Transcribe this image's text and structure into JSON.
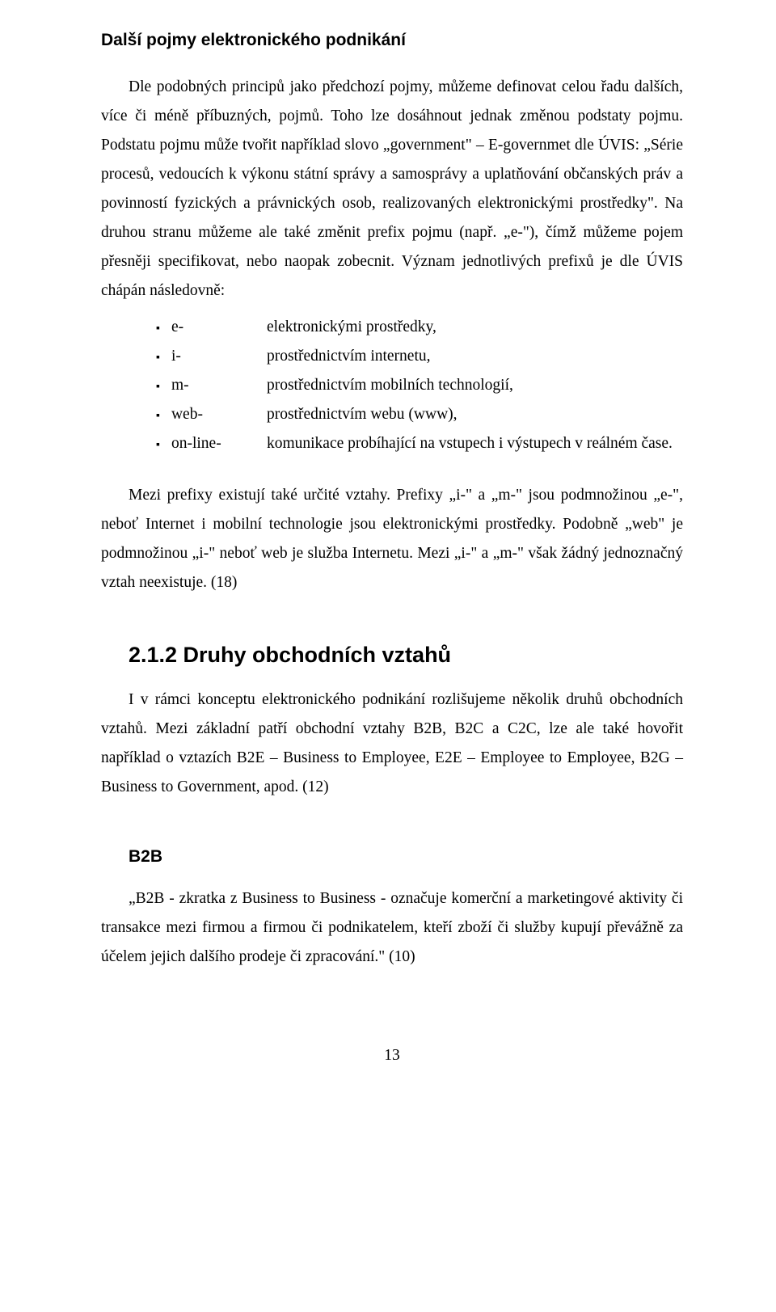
{
  "colors": {
    "page_background": "#ffffff",
    "text_color": "#000000"
  },
  "typography": {
    "body_font": "Times New Roman",
    "heading_font": "Arial",
    "body_size_pt": 12,
    "h3_size_pt": 13,
    "h2_size_pt": 16,
    "line_height": 1.85
  },
  "section1": {
    "heading": "Další pojmy elektronického podnikání",
    "para1": "Dle podobných principů jako předchozí pojmy, můžeme definovat celou řadu dalších, více či méně příbuzných, pojmů. Toho lze dosáhnout jednak změnou podstaty pojmu. Podstatu pojmu může tvořit například slovo „government\" – E-governmet dle ÚVIS: „Série procesů, vedoucích k výkonu státní správy a samosprávy a uplatňování občanských práv a povinností fyzických a právnických osob, realizovaných elektronickými prostředky\". Na druhou stranu můžeme ale také změnit prefix pojmu (např. „e-\"), čímž můžeme pojem přesněji specifikovat, nebo naopak zobecnit. Význam jednotlivých prefixů je dle ÚVIS chápán následovně:",
    "prefixes": [
      {
        "prefix": "e-",
        "definition": "elektronickými prostředky,"
      },
      {
        "prefix": "i-",
        "definition": "prostřednictvím internetu,"
      },
      {
        "prefix": "m-",
        "definition": "prostřednictvím mobilních technologií,"
      },
      {
        "prefix": "web-",
        "definition": "prostřednictvím webu (www),"
      },
      {
        "prefix": "on-line-",
        "definition": "komunikace probíhající na vstupech i výstupech v reálném čase."
      }
    ],
    "para2": "Mezi prefixy existují také určité vztahy. Prefixy „i-\" a „m-\" jsou podmnožinou „e-\", neboť Internet i mobilní technologie jsou elektronickými prostředky. Podobně „web\" je podmnožinou „i-\" neboť web je služba Internetu. Mezi „i-\" a „m-\" však žádný jednoznačný vztah neexistuje. (18)"
  },
  "section2": {
    "heading": "2.1.2 Druhy obchodních vztahů",
    "para1": "I v rámci konceptu elektronického podnikání rozlišujeme několik druhů obchodních vztahů. Mezi základní patří obchodní vztahy B2B, B2C a C2C, lze ale také hovořit například o vztazích B2E – Business to Employee, E2E – Employee to Employee, B2G – Business to Government, apod. (12)"
  },
  "section3": {
    "heading": "B2B",
    "para1": "„B2B - zkratka z Business to Business - označuje komerční a marketingové aktivity či transakce mezi firmou a firmou či podnikatelem, kteří zboží či služby kupují převážně za účelem jejich dalšího prodeje či zpracování.\" (10)"
  },
  "page_number": "13"
}
